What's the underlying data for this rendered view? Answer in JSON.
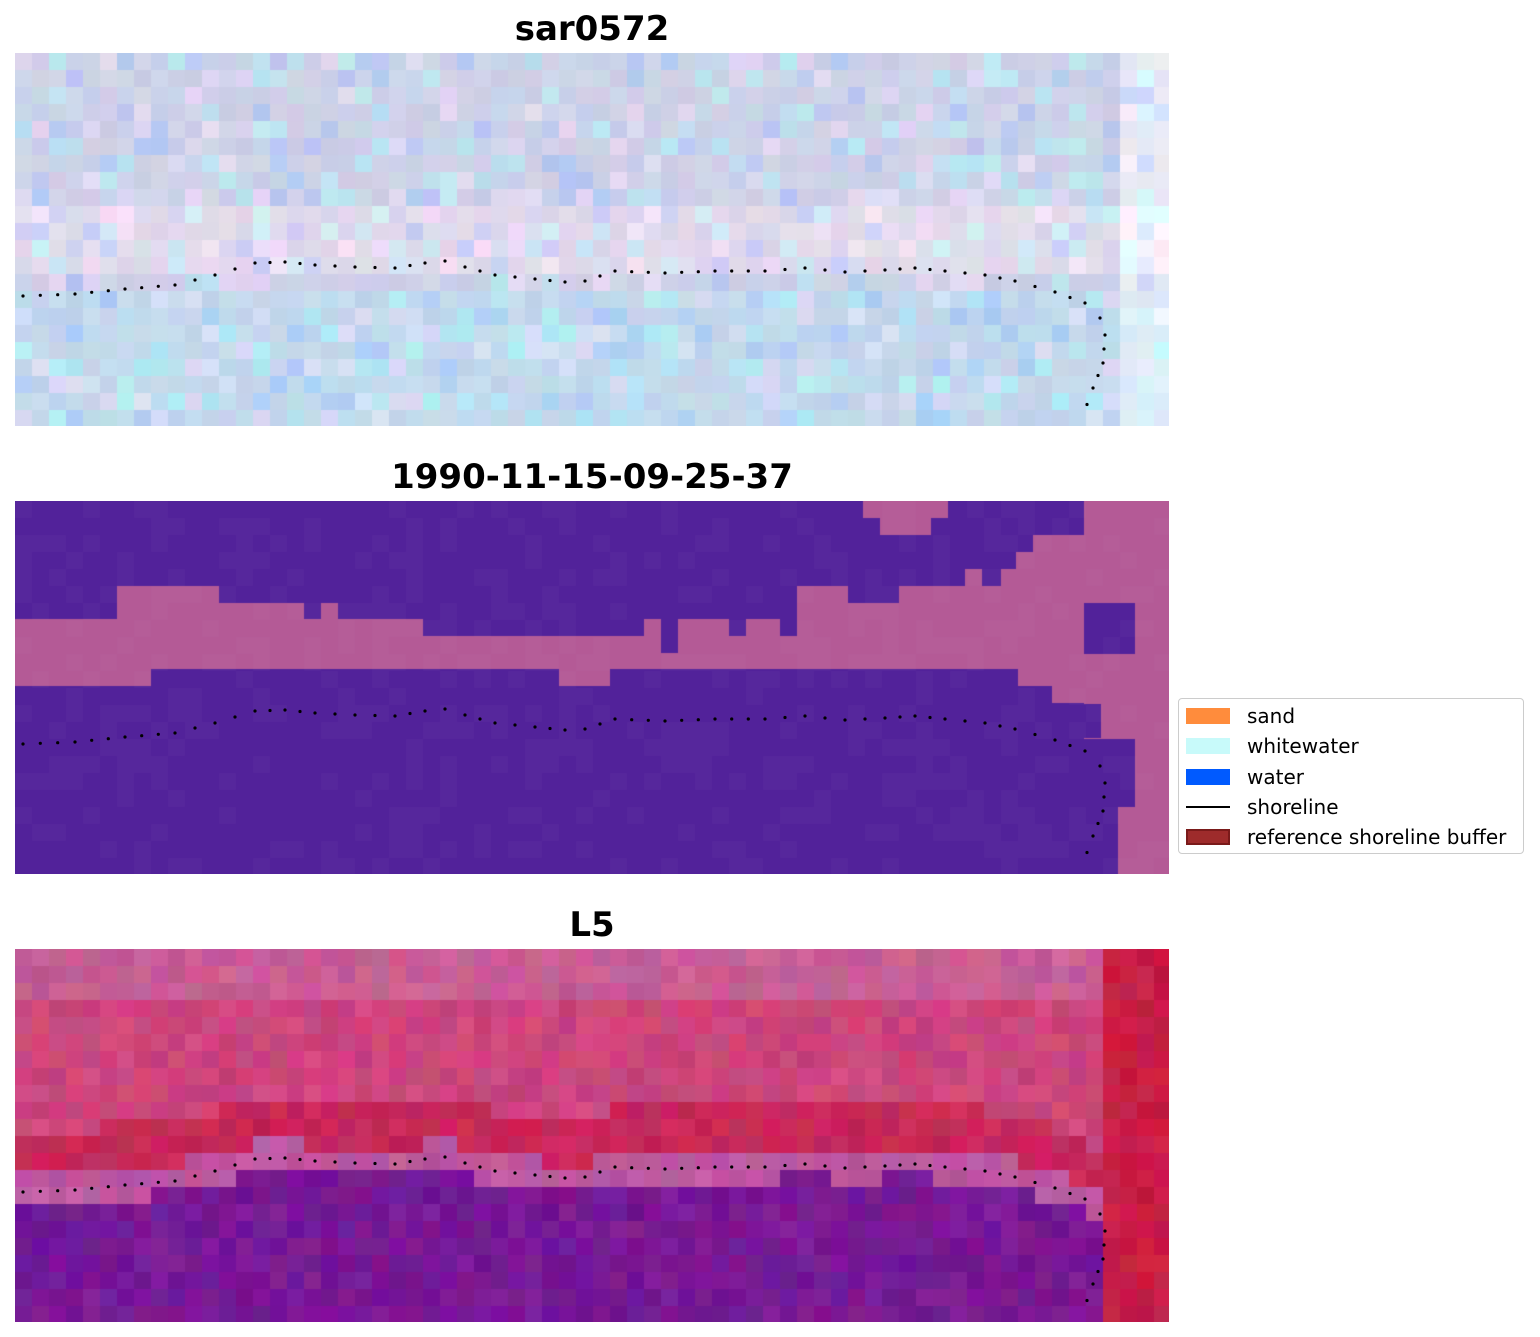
{
  "panels": [
    {
      "title": "sar0572"
    },
    {
      "title": "1990-11-15-09-25-37"
    },
    {
      "title": "L5"
    }
  ],
  "legend": {
    "items": [
      {
        "label": "sand",
        "kind": "patch",
        "color": "#ff8c3c"
      },
      {
        "label": "whitewater",
        "kind": "patch",
        "color": "#c8fafa"
      },
      {
        "label": "water",
        "kind": "patch",
        "color": "#005aff"
      },
      {
        "label": "shoreline",
        "kind": "line",
        "color": "#000000"
      },
      {
        "label": "reference shoreline buffer",
        "kind": "patch",
        "color": "#9e2b2b",
        "edge": "#7a1a1a"
      }
    ]
  },
  "colors": {
    "classification_land": "#b45a96",
    "classification_water": "#52229a",
    "shoreline_dots": "#000000"
  }
}
